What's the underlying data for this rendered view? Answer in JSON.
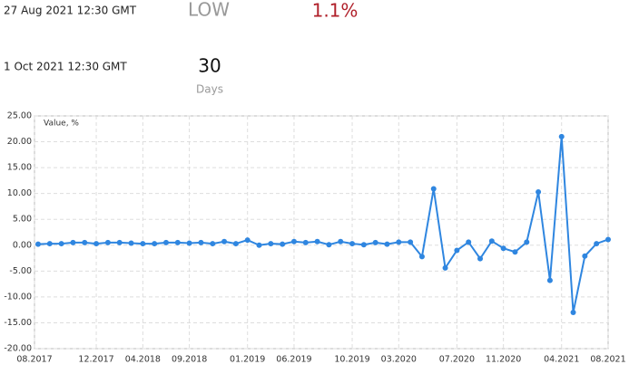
{
  "header": {
    "start_date": "27 Aug 2021 12:30 GMT",
    "level": "LOW",
    "change": "1.1%",
    "end_date": "1 Oct 2021 12:30 GMT",
    "duration": "30",
    "duration_unit": "Days"
  },
  "chart_data": {
    "type": "line",
    "y_label": "Value, %",
    "color": "#2f86e0",
    "grid": true,
    "categories": [
      "08.2017",
      null,
      null,
      null,
      null,
      "12.2017",
      null,
      null,
      null,
      "04.2018",
      null,
      null,
      null,
      "09.2018",
      null,
      null,
      null,
      null,
      "01.2019",
      null,
      null,
      null,
      "06.2019",
      null,
      null,
      null,
      null,
      "10.2019",
      null,
      null,
      null,
      "03.2020",
      null,
      null,
      null,
      null,
      "07.2020",
      null,
      null,
      null,
      "11.2020",
      null,
      null,
      null,
      null,
      "04.2021",
      null,
      null,
      null,
      "08.2021"
    ],
    "values": [
      0.2,
      0.3,
      0.3,
      0.5,
      0.5,
      0.3,
      0.5,
      0.5,
      0.4,
      0.3,
      0.3,
      0.5,
      0.5,
      0.4,
      0.5,
      0.3,
      0.7,
      0.3,
      1.0,
      0.0,
      0.3,
      0.2,
      0.7,
      0.5,
      0.7,
      0.1,
      0.7,
      0.3,
      0.1,
      0.5,
      0.2,
      0.6,
      0.6,
      -2.2,
      10.9,
      -4.4,
      -1.0,
      0.6,
      -2.6,
      0.8,
      -0.6,
      -1.3,
      0.6,
      10.3,
      -6.8,
      21.0,
      -13.0,
      -2.1,
      0.3,
      1.1
    ],
    "ylim": [
      -20,
      25
    ],
    "yticks": [
      {
        "value": -20,
        "label": "-20.00"
      },
      {
        "value": -15,
        "label": "-15.00"
      },
      {
        "value": -10,
        "label": "-10.00"
      },
      {
        "value": -5,
        "label": "-5.00"
      },
      {
        "value": 0,
        "label": "0.00"
      },
      {
        "value": 5,
        "label": "5.00"
      },
      {
        "value": 10,
        "label": "10.00"
      },
      {
        "value": 15,
        "label": "15.00"
      },
      {
        "value": 20,
        "label": "20.00"
      },
      {
        "value": 25,
        "label": "25.00"
      }
    ]
  }
}
